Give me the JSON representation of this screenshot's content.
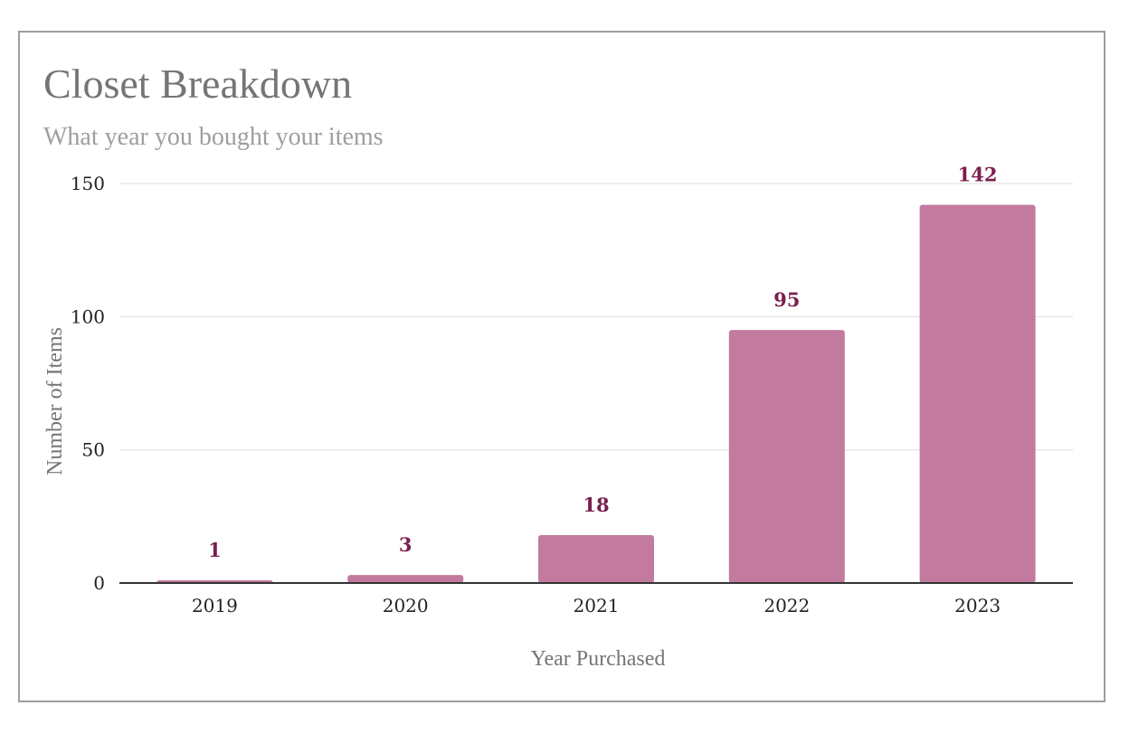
{
  "title": "Closet Breakdown",
  "subtitle": "What year you bought your items",
  "colors": {
    "bar": "#c27a9f",
    "value_label": "#7b1f4e",
    "gridline": "#e8e8e8",
    "baseline": "#333333"
  },
  "chart_data": {
    "type": "bar",
    "title": "Closet Breakdown",
    "subtitle": "What year you bought your items",
    "categories": [
      "2019",
      "2020",
      "2021",
      "2022",
      "2023"
    ],
    "values": [
      1,
      3,
      18,
      95,
      142
    ],
    "value_labels": [
      "1",
      "3",
      "18",
      "95",
      "142"
    ],
    "xlabel": "Year Purchased",
    "ylabel": "Number of Items",
    "ylim": [
      0,
      150
    ],
    "y_ticks": [
      0,
      50,
      100,
      150
    ],
    "grid": true,
    "legend": "none"
  }
}
